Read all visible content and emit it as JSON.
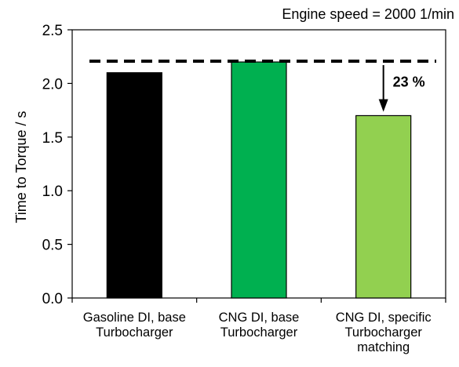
{
  "chart_data": {
    "type": "bar",
    "title": "",
    "xlabel": "",
    "ylabel": "Time to Torque / s",
    "ylim": [
      0,
      2.5
    ],
    "yticks": [
      "0.0",
      "0.5",
      "1.0",
      "1.5",
      "2.0",
      "2.5"
    ],
    "grid": false,
    "categories": [
      [
        "Gasoline DI, base",
        "Turbocharger"
      ],
      [
        "CNG DI, base",
        "Turbocharger"
      ],
      [
        "CNG DI, specific",
        "Turbocharger",
        "matching"
      ]
    ],
    "values": [
      2.1,
      2.2,
      1.7
    ],
    "colors": [
      "#000000",
      "#00B050",
      "#92D050"
    ],
    "reference_line": {
      "value": 2.2,
      "style": "dashed"
    },
    "annotations": {
      "engine_speed": "Engine speed = 2000 1/min",
      "reduction": "23 %"
    }
  }
}
